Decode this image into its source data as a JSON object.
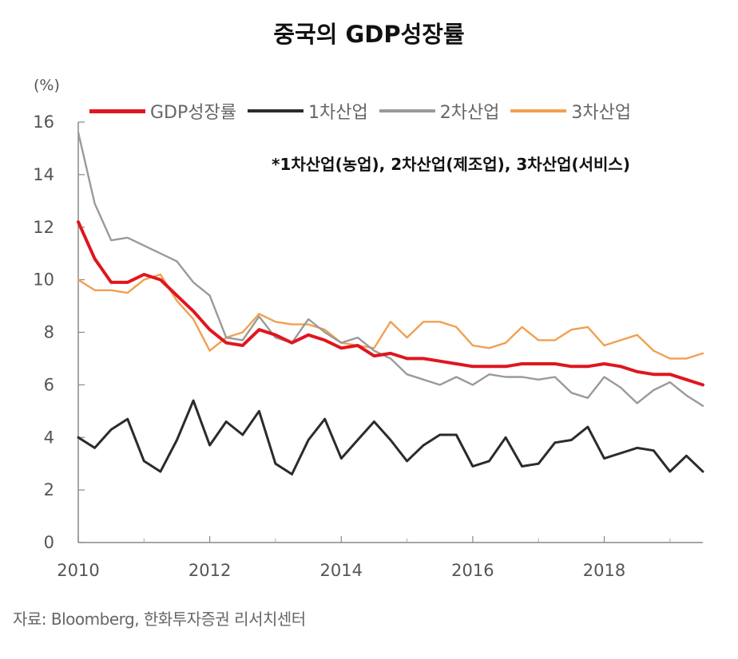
{
  "chart_data": {
    "type": "line",
    "title": "중국의 GDP성장률",
    "ylabel": "(%)",
    "note": "*1차산업(농업), 2차산업(제조업), 3차산업(서비스)",
    "source": "자료: Bloomberg, 한화투자증권 리서치센터",
    "ylim": [
      0,
      16
    ],
    "yticks": [
      "0",
      "2",
      "4",
      "6",
      "8",
      "10",
      "12",
      "14",
      "16"
    ],
    "xlim": [
      2010,
      2019.5
    ],
    "xticks": [
      "2010",
      "2012",
      "2014",
      "2016",
      "2018"
    ],
    "legend_position": "top",
    "x": [
      2010.0,
      2010.25,
      2010.5,
      2010.75,
      2011.0,
      2011.25,
      2011.5,
      2011.75,
      2012.0,
      2012.25,
      2012.5,
      2012.75,
      2013.0,
      2013.25,
      2013.5,
      2013.75,
      2014.0,
      2014.25,
      2014.5,
      2014.75,
      2015.0,
      2015.25,
      2015.5,
      2015.75,
      2016.0,
      2016.25,
      2016.5,
      2016.75,
      2017.0,
      2017.25,
      2017.5,
      2017.75,
      2018.0,
      2018.25,
      2018.5,
      2018.75,
      2019.0,
      2019.25,
      2019.5
    ],
    "series": [
      {
        "name": "GDP성장률",
        "color": "#e0161f",
        "values": [
          12.2,
          10.8,
          9.9,
          9.9,
          10.2,
          10.0,
          9.4,
          8.8,
          8.1,
          7.6,
          7.5,
          8.1,
          7.9,
          7.6,
          7.9,
          7.7,
          7.4,
          7.5,
          7.1,
          7.2,
          7.0,
          7.0,
          6.9,
          6.8,
          6.7,
          6.7,
          6.7,
          6.8,
          6.8,
          6.8,
          6.7,
          6.7,
          6.8,
          6.7,
          6.5,
          6.4,
          6.4,
          6.2,
          6.0
        ]
      },
      {
        "name": "1차산업",
        "color": "#2b2b2b",
        "values": [
          4.0,
          3.6,
          4.3,
          4.7,
          3.1,
          2.7,
          3.9,
          5.4,
          3.7,
          4.6,
          4.1,
          5.0,
          3.0,
          2.6,
          3.9,
          4.7,
          3.2,
          3.9,
          4.6,
          3.9,
          3.1,
          3.7,
          4.1,
          4.1,
          2.9,
          3.1,
          4.0,
          2.9,
          3.0,
          3.8,
          3.9,
          4.4,
          3.2,
          3.4,
          3.6,
          3.5,
          2.7,
          3.3,
          2.7
        ]
      },
      {
        "name": "2차산업",
        "color": "#9a9a9a",
        "values": [
          15.6,
          12.9,
          11.5,
          11.6,
          11.3,
          11.0,
          10.7,
          9.9,
          9.4,
          7.8,
          7.7,
          8.6,
          7.8,
          7.6,
          8.5,
          8.0,
          7.6,
          7.8,
          7.3,
          7.0,
          6.4,
          6.2,
          6.0,
          6.3,
          6.0,
          6.4,
          6.3,
          6.3,
          6.2,
          6.3,
          5.7,
          5.5,
          6.3,
          5.9,
          5.3,
          5.8,
          6.1,
          5.6,
          5.2
        ]
      },
      {
        "name": "3차산업",
        "color": "#f0a050",
        "values": [
          10.0,
          9.6,
          9.6,
          9.5,
          10.0,
          10.2,
          9.2,
          8.5,
          7.3,
          7.8,
          8.0,
          8.7,
          8.4,
          8.3,
          8.3,
          8.1,
          7.6,
          7.5,
          7.4,
          8.4,
          7.8,
          8.4,
          8.4,
          8.2,
          7.5,
          7.4,
          7.6,
          8.2,
          7.7,
          7.7,
          8.1,
          8.2,
          7.5,
          7.7,
          7.9,
          7.3,
          7.0,
          7.0,
          7.2
        ]
      }
    ]
  }
}
